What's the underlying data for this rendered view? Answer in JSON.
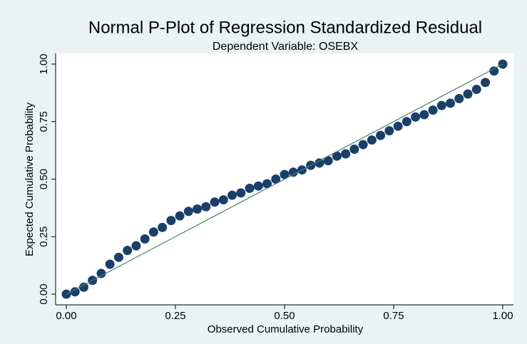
{
  "chart_data": {
    "type": "scatter",
    "title": "Normal P-Plot of Regression Standardized Residual",
    "subtitle": "Dependent Variable: OSEBX",
    "x_label": "Observed Cumulative Probability",
    "y_label": "Expected Cumulative Probability",
    "xlim": [
      0,
      1
    ],
    "ylim": [
      0,
      1
    ],
    "xticks": [
      {
        "value": 0,
        "label": "0.00"
      },
      {
        "value": 0.25,
        "label": "0.25"
      },
      {
        "value": 0.5,
        "label": "0.50"
      },
      {
        "value": 0.75,
        "label": "0.75"
      },
      {
        "value": 1,
        "label": "1.00"
      }
    ],
    "yticks": [
      {
        "value": 0,
        "label": "0.00"
      },
      {
        "value": 0.25,
        "label": "0.25"
      },
      {
        "value": 0.5,
        "label": "0.50"
      },
      {
        "value": 0.75,
        "label": "0.75"
      },
      {
        "value": 1,
        "label": "1.00"
      }
    ],
    "grid": false,
    "series": [
      {
        "color": "#1a3f6a",
        "x": [
          0,
          0.02,
          0.04,
          0.06,
          0.08,
          0.1,
          0.12,
          0.14,
          0.16,
          0.18,
          0.2,
          0.22,
          0.24,
          0.26,
          0.28,
          0.3,
          0.32,
          0.34,
          0.36,
          0.38,
          0.4,
          0.42,
          0.44,
          0.46,
          0.48,
          0.5,
          0.52,
          0.54,
          0.56,
          0.58,
          0.6,
          0.62,
          0.64,
          0.66,
          0.68,
          0.7,
          0.72,
          0.74,
          0.76,
          0.78,
          0.8,
          0.82,
          0.84,
          0.86,
          0.88,
          0.9,
          0.92,
          0.94,
          0.96,
          0.98,
          1
        ],
        "values": [
          0,
          0.01,
          0.03,
          0.06,
          0.09,
          0.13,
          0.16,
          0.19,
          0.21,
          0.24,
          0.27,
          0.29,
          0.32,
          0.34,
          0.36,
          0.37,
          0.38,
          0.4,
          0.41,
          0.43,
          0.44,
          0.46,
          0.47,
          0.48,
          0.5,
          0.52,
          0.53,
          0.54,
          0.56,
          0.57,
          0.58,
          0.6,
          0.61,
          0.63,
          0.65,
          0.67,
          0.69,
          0.71,
          0.73,
          0.75,
          0.77,
          0.78,
          0.8,
          0.82,
          0.83,
          0.85,
          0.87,
          0.89,
          0.92,
          0.97,
          1
        ]
      }
    ],
    "reference_line": {
      "color": "#4a7f6a",
      "x": [
        0,
        1
      ],
      "values": [
        0,
        1
      ]
    }
  }
}
